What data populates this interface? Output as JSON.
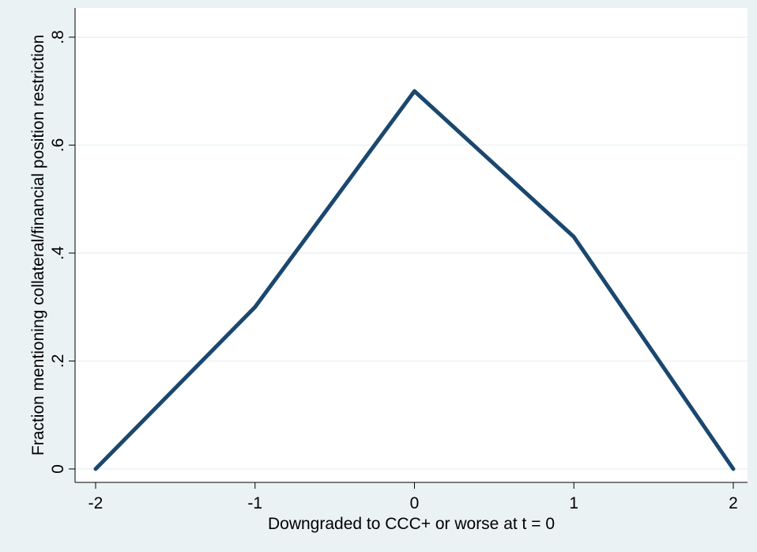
{
  "chart_data": {
    "type": "line",
    "title": "",
    "xlabel": "Downgraded to CCC+ or worse at t = 0",
    "ylabel": "Fraction mentioning collateral/financial position restriction",
    "x": [
      -2,
      -1,
      0,
      1,
      2
    ],
    "series": [
      {
        "values": [
          0,
          0.3,
          0.7,
          0.43,
          0
        ]
      }
    ],
    "xticks": [
      -2,
      -1,
      0,
      1,
      2
    ],
    "xtick_labels": [
      "-2",
      "-1",
      "0",
      "1",
      "2"
    ],
    "yticks": [
      0,
      0.2,
      0.4,
      0.6,
      0.8
    ],
    "ytick_labels": [
      "0",
      ".2",
      ".4",
      ".6",
      ".8"
    ],
    "xlim": [
      -2,
      2
    ],
    "ylim": [
      0,
      0.8
    ],
    "grid": true,
    "legend": "none",
    "colors": {
      "outer_background": "#eaf2f3",
      "plot_background": "#ffffff",
      "grid": "#eaf2f3",
      "line": "#1a476f",
      "axis": "#000000"
    }
  }
}
